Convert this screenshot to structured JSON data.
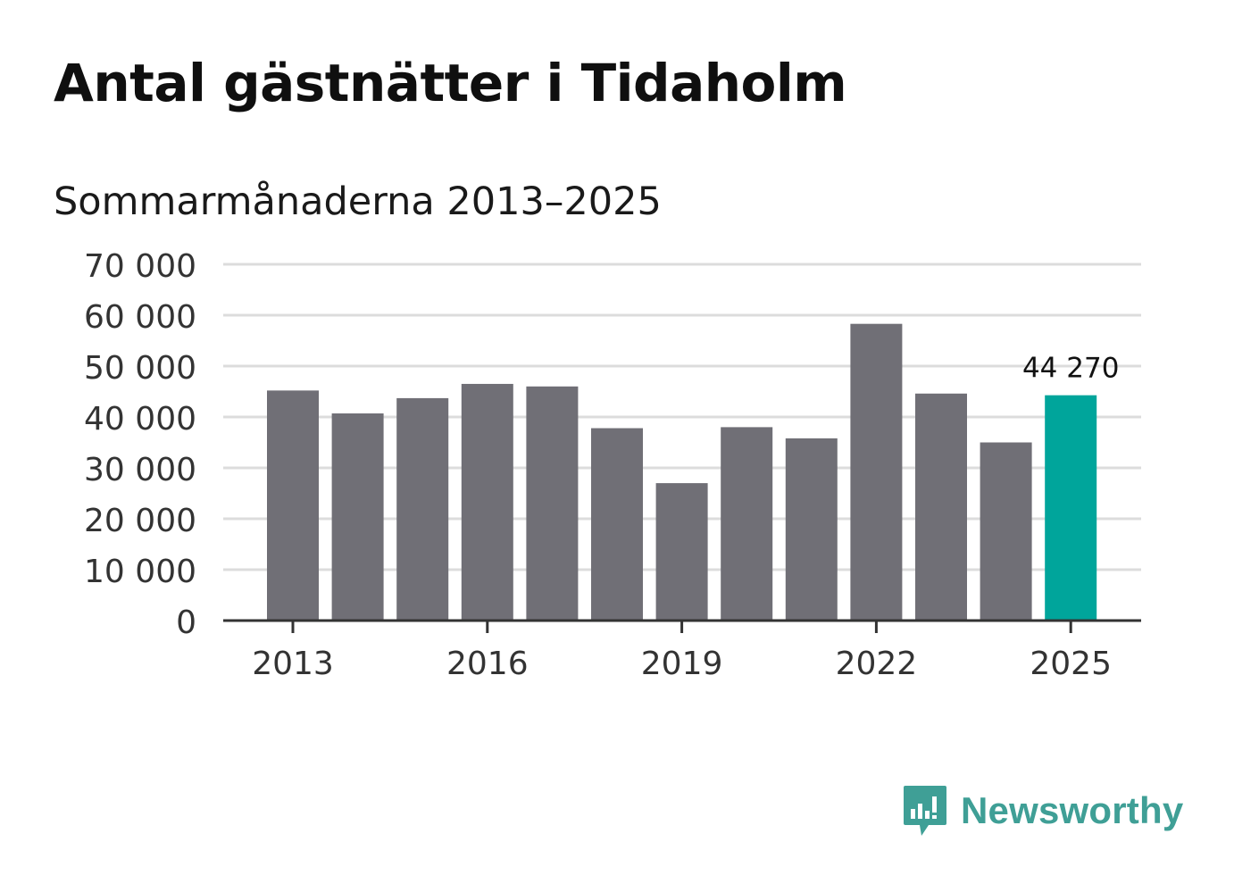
{
  "chart_data": {
    "type": "bar",
    "title": "Antal gästnätter i Tidaholm",
    "subtitle": "Sommarmånaderna 2013–2025",
    "categories": [
      "2013",
      "2014",
      "2015",
      "2016",
      "2017",
      "2018",
      "2019",
      "2020",
      "2021",
      "2022",
      "2023",
      "2024",
      "2025"
    ],
    "values": [
      45200,
      40700,
      43700,
      46500,
      46000,
      37800,
      27000,
      38000,
      35800,
      58300,
      44600,
      35000,
      44270
    ],
    "x_tick_labels": [
      "2013",
      "2016",
      "2019",
      "2022",
      "2025"
    ],
    "y_ticks": [
      0,
      10000,
      20000,
      30000,
      40000,
      50000,
      60000,
      70000
    ],
    "y_tick_labels": [
      "0",
      "10 000",
      "20 000",
      "30 000",
      "40 000",
      "50 000",
      "60 000",
      "70 000"
    ],
    "ylim": [
      0,
      70000
    ],
    "annotation": {
      "category": "2025",
      "label": "44 270"
    },
    "highlight_category": "2025",
    "colors": {
      "bar": "#706f76",
      "highlight": "#00a59b",
      "grid": "#dcdcdc",
      "axis": "#333333"
    },
    "grid": true,
    "xlabel": "",
    "ylabel": ""
  },
  "brand": {
    "name": "Newsworthy",
    "icon": "newsworthy-logo-icon",
    "color": "#3f9f96"
  }
}
